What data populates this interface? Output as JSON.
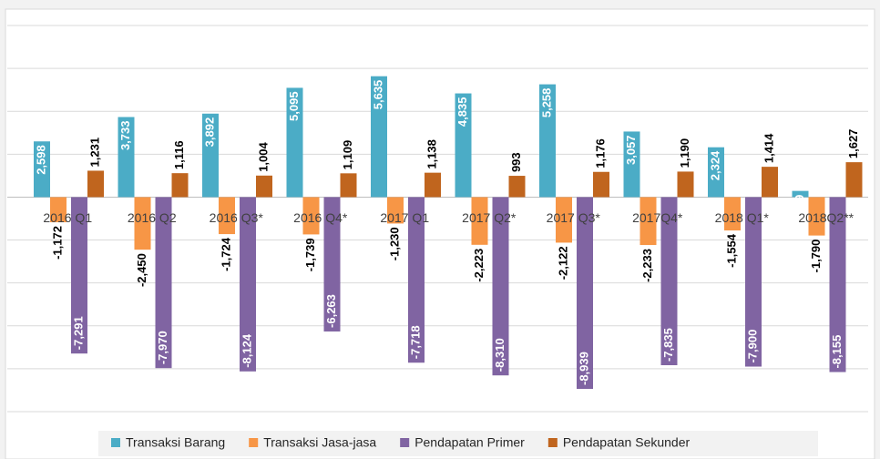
{
  "chart_data": {
    "type": "bar",
    "categories": [
      "2016 Q1",
      "2016 Q2",
      "2016 Q3*",
      "2016 Q4*",
      "2017 Q1",
      "2017 Q2*",
      "2017 Q3*",
      "2017Q4*",
      "2018 Q1*",
      "2018Q2**"
    ],
    "series": [
      {
        "name": "Transaksi Barang",
        "color": "#4bacc6",
        "values": [
          2598,
          3733,
          3892,
          5095,
          5635,
          4835,
          5258,
          3057,
          2324,
          289
        ],
        "value_labels": [
          "2,598",
          "3,733",
          "3,892",
          "5,095",
          "5,635",
          "4,835",
          "5,258",
          "3,057",
          "2,324",
          "289"
        ]
      },
      {
        "name": "Transaksi Jasa-jasa",
        "color": "#f79646",
        "values": [
          -1172,
          -2450,
          -1724,
          -1739,
          -1230,
          -2223,
          -2122,
          -2233,
          -1554,
          -1790
        ],
        "value_labels": [
          "-1,172",
          "-2,450",
          "-1,724",
          "-1,739",
          "-1,230",
          "-2,223",
          "-2,122",
          "-2,233",
          "-1,554",
          "-1,790"
        ]
      },
      {
        "name": "Pendapatan Primer",
        "color": "#8064a2",
        "values": [
          -7291,
          -7970,
          -8124,
          -6263,
          -7718,
          -8310,
          -8939,
          -7835,
          -7900,
          -8155
        ],
        "value_labels": [
          "-7,291",
          "-7,970",
          "-8,124",
          "-6,263",
          "-7,718",
          "-8,310",
          "-8,939",
          "-7,835",
          "-7,900",
          "-8,155"
        ]
      },
      {
        "name": "Pendapatan Sekunder",
        "color": "#c0651e",
        "values": [
          1231,
          1116,
          1004,
          1109,
          1138,
          993,
          1176,
          1190,
          1414,
          1627
        ],
        "value_labels": [
          "1,231",
          "1,116",
          "1,004",
          "1,109",
          "1,138",
          "993",
          "1,176",
          "1,190",
          "1,414",
          "1,627"
        ]
      }
    ],
    "ylim": [
      -10000,
      8000
    ],
    "yticks": [
      -10000,
      -8000,
      -6000,
      -4000,
      -2000,
      0,
      2000,
      4000,
      6000,
      8000
    ],
    "grid": true
  }
}
